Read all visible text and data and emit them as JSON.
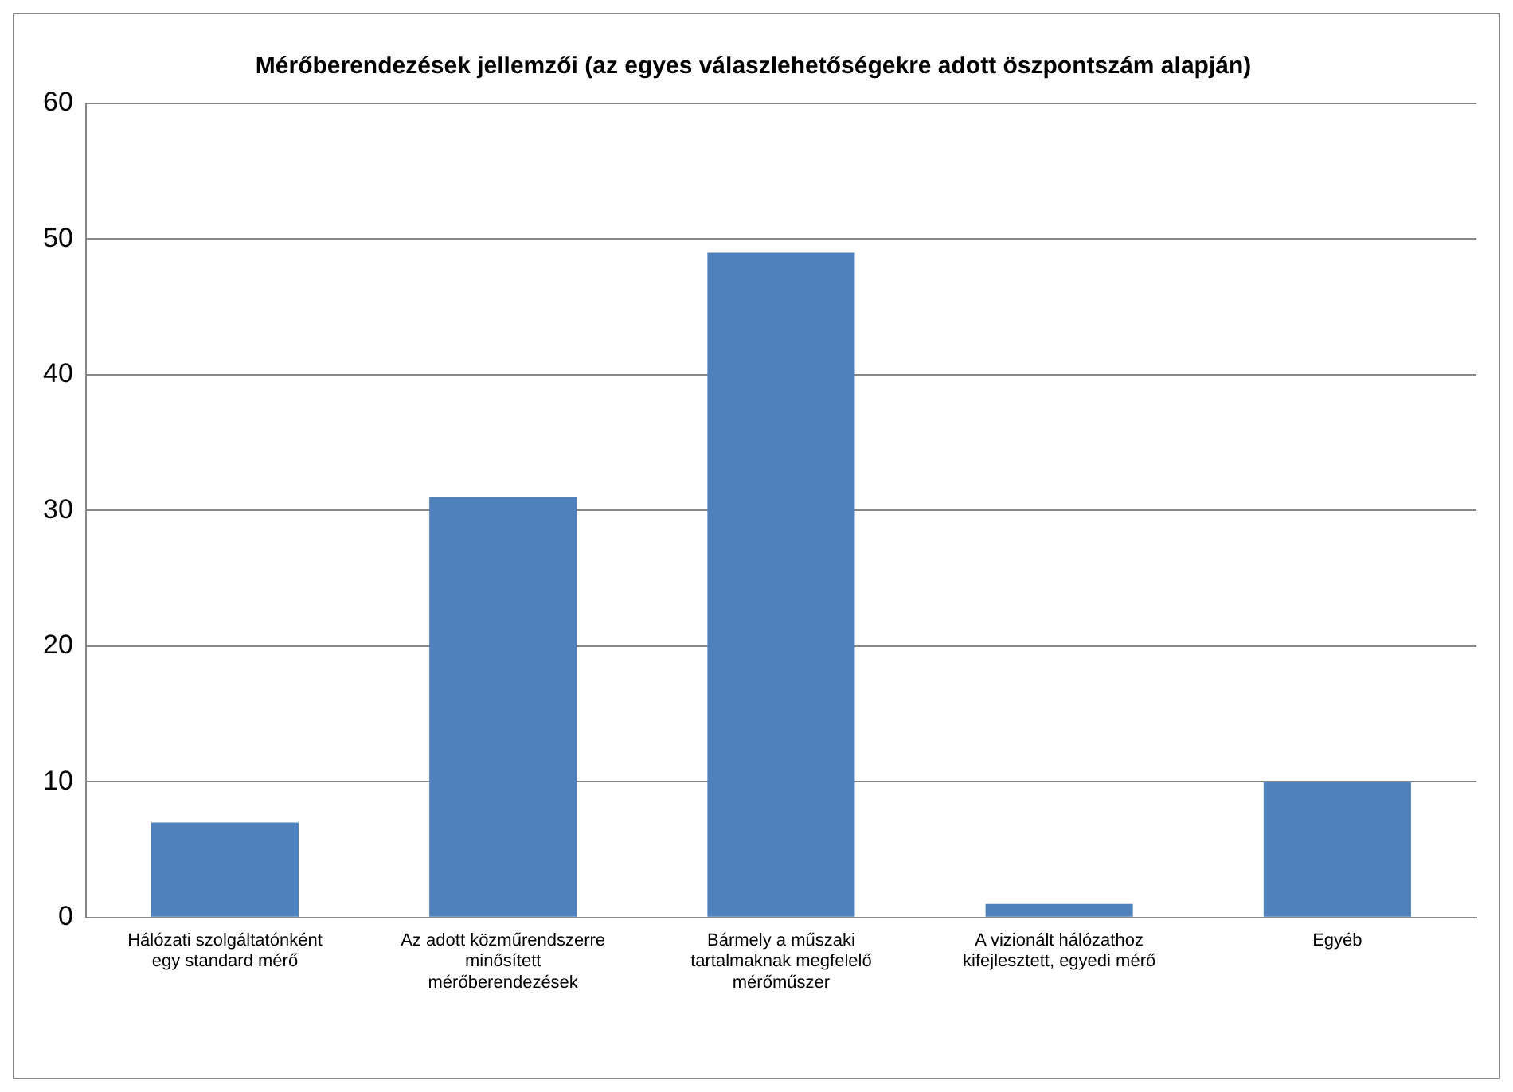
{
  "chart_data": {
    "type": "bar",
    "title": "Mérőberendezések jellemzői (az egyes válaszlehetőségekre adott öszpontszám alapján)",
    "categories": [
      "Hálózati szolgáltatónként egy standard mérő",
      "Az adott közműrendszerre minősített mérőberendezések",
      "Bármely a műszaki tartalmaknak megfelelő mérőműszer",
      "A vizionált hálózathoz kifejlesztett, egyedi mérő",
      "Egyéb"
    ],
    "values": [
      7,
      31,
      49,
      1,
      10
    ],
    "color": "#4f81bd",
    "ylim": [
      0,
      60
    ],
    "yticks": [
      0,
      10,
      20,
      30,
      40,
      50,
      60
    ],
    "grid": "y"
  }
}
